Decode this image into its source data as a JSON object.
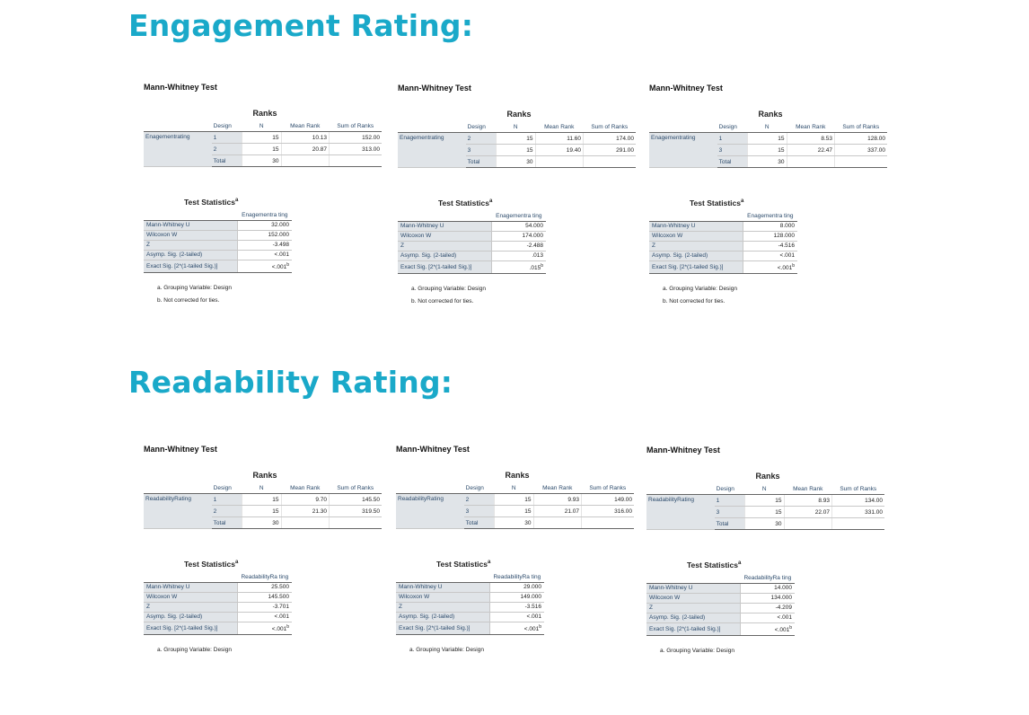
{
  "sections": [
    {
      "heading": "Engagement Rating:",
      "panels": [
        {
          "mw_title": "Mann-Whitney Test",
          "ranks_title": "Ranks",
          "col_design": "Design",
          "col_n": "N",
          "col_mean": "Mean Rank",
          "col_sum": "Sum of Ranks",
          "variable": "Enagementrating",
          "rows": [
            {
              "design": "1",
              "n": "15",
              "mean": "10.13",
              "sum": "152.00"
            },
            {
              "design": "2",
              "n": "15",
              "mean": "20.87",
              "sum": "313.00"
            }
          ],
          "total_label": "Total",
          "total_n": "30",
          "ts_title": "Test Statistics",
          "ts_sup": "a",
          "ts_col": "Enagementra ting",
          "stats": [
            {
              "label": "Mann-Whitney U",
              "value": "32.000"
            },
            {
              "label": "Wilcoxon W",
              "value": "152.000"
            },
            {
              "label": "Z",
              "value": "-3.498"
            },
            {
              "label": "Asymp. Sig. (2-tailed)",
              "value": "<.001"
            },
            {
              "label": "Exact Sig. [2*(1-tailed Sig.)]",
              "value": "<.001",
              "sup": "b"
            }
          ],
          "note_a": "a. Grouping Variable: Design",
          "note_b": "b. Not corrected for ties."
        },
        {
          "mw_title": "Mann-Whitney Test",
          "ranks_title": "Ranks",
          "col_design": "Design",
          "col_n": "N",
          "col_mean": "Mean Rank",
          "col_sum": "Sum of Ranks",
          "variable": "Enagementrating",
          "rows": [
            {
              "design": "2",
              "n": "15",
              "mean": "11.60",
              "sum": "174.00"
            },
            {
              "design": "3",
              "n": "15",
              "mean": "19.40",
              "sum": "291.00"
            }
          ],
          "total_label": "Total",
          "total_n": "30",
          "ts_title": "Test Statistics",
          "ts_sup": "a",
          "ts_col": "Enagementra ting",
          "stats": [
            {
              "label": "Mann-Whitney U",
              "value": "54.000"
            },
            {
              "label": "Wilcoxon W",
              "value": "174.000"
            },
            {
              "label": "Z",
              "value": "-2.488"
            },
            {
              "label": "Asymp. Sig. (2-tailed)",
              "value": ".013"
            },
            {
              "label": "Exact Sig. [2*(1-tailed Sig.)]",
              "value": ".015",
              "sup": "b"
            }
          ],
          "note_a": "a. Grouping Variable: Design",
          "note_b": "b. Not corrected for ties."
        },
        {
          "mw_title": "Mann-Whitney Test",
          "ranks_title": "Ranks",
          "col_design": "Design",
          "col_n": "N",
          "col_mean": "Mean Rank",
          "col_sum": "Sum of Ranks",
          "variable": "Enagementrating",
          "rows": [
            {
              "design": "1",
              "n": "15",
              "mean": "8.53",
              "sum": "128.00"
            },
            {
              "design": "3",
              "n": "15",
              "mean": "22.47",
              "sum": "337.00"
            }
          ],
          "total_label": "Total",
          "total_n": "30",
          "ts_title": "Test Statistics",
          "ts_sup": "a",
          "ts_col": "Enagementra ting",
          "stats": [
            {
              "label": "Mann-Whitney U",
              "value": "8.000"
            },
            {
              "label": "Wilcoxon W",
              "value": "128.000"
            },
            {
              "label": "Z",
              "value": "-4.516"
            },
            {
              "label": "Asymp. Sig. (2-tailed)",
              "value": "<.001"
            },
            {
              "label": "Exact Sig. [2*(1-tailed Sig.)]",
              "value": "<.001",
              "sup": "b"
            }
          ],
          "note_a": "a. Grouping Variable: Design",
          "note_b": "b. Not corrected for ties."
        }
      ]
    },
    {
      "heading": "Readability Rating:",
      "panels": [
        {
          "mw_title": "Mann-Whitney Test",
          "ranks_title": "Ranks",
          "col_design": "Design",
          "col_n": "N",
          "col_mean": "Mean Rank",
          "col_sum": "Sum of Ranks",
          "variable": "ReadabilityRating",
          "rows": [
            {
              "design": "1",
              "n": "15",
              "mean": "9.70",
              "sum": "145.50"
            },
            {
              "design": "2",
              "n": "15",
              "mean": "21.30",
              "sum": "319.50"
            }
          ],
          "total_label": "Total",
          "total_n": "30",
          "ts_title": "Test Statistics",
          "ts_sup": "a",
          "ts_col": "ReadabilityRa ting",
          "stats": [
            {
              "label": "Mann-Whitney U",
              "value": "25.500"
            },
            {
              "label": "Wilcoxon W",
              "value": "145.500"
            },
            {
              "label": "Z",
              "value": "-3.701"
            },
            {
              "label": "Asymp. Sig. (2-tailed)",
              "value": "<.001"
            },
            {
              "label": "Exact Sig. [2*(1-tailed Sig.)]",
              "value": "<.001",
              "sup": "b"
            }
          ],
          "note_a": "a. Grouping Variable: Design"
        },
        {
          "mw_title": "Mann-Whitney Test",
          "ranks_title": "Ranks",
          "col_design": "Design",
          "col_n": "N",
          "col_mean": "Mean Rank",
          "col_sum": "Sum of Ranks",
          "variable": "ReadabilityRating",
          "rows": [
            {
              "design": "2",
              "n": "15",
              "mean": "9.93",
              "sum": "149.00"
            },
            {
              "design": "3",
              "n": "15",
              "mean": "21.07",
              "sum": "316.00"
            }
          ],
          "total_label": "Total",
          "total_n": "30",
          "ts_title": "Test Statistics",
          "ts_sup": "a",
          "ts_col": "ReadabilityRa ting",
          "stats": [
            {
              "label": "Mann-Whitney U",
              "value": "29.000"
            },
            {
              "label": "Wilcoxon W",
              "value": "149.000"
            },
            {
              "label": "Z",
              "value": "-3.516"
            },
            {
              "label": "Asymp. Sig. (2-tailed)",
              "value": "<.001"
            },
            {
              "label": "Exact Sig. [2*(1-tailed Sig.)]",
              "value": "<.001",
              "sup": "b"
            }
          ],
          "note_a": "a. Grouping Variable: Design"
        },
        {
          "mw_title": "Mann-Whitney Test",
          "ranks_title": "Ranks",
          "col_design": "Design",
          "col_n": "N",
          "col_mean": "Mean Rank",
          "col_sum": "Sum of Ranks",
          "variable": "ReadabilityRating",
          "rows": [
            {
              "design": "1",
              "n": "15",
              "mean": "8.93",
              "sum": "134.00"
            },
            {
              "design": "3",
              "n": "15",
              "mean": "22.07",
              "sum": "331.00"
            }
          ],
          "total_label": "Total",
          "total_n": "30",
          "ts_title": "Test Statistics",
          "ts_sup": "a",
          "ts_col": "ReadabilityRa ting",
          "stats": [
            {
              "label": "Mann-Whitney U",
              "value": "14.000"
            },
            {
              "label": "Wilcoxon W",
              "value": "134.000"
            },
            {
              "label": "Z",
              "value": "-4.209"
            },
            {
              "label": "Asymp. Sig. (2-tailed)",
              "value": "<.001"
            },
            {
              "label": "Exact Sig. [2*(1-tailed Sig.)]",
              "value": "<.001",
              "sup": "b"
            }
          ],
          "note_a": "a. Grouping Variable: Design"
        }
      ]
    }
  ]
}
